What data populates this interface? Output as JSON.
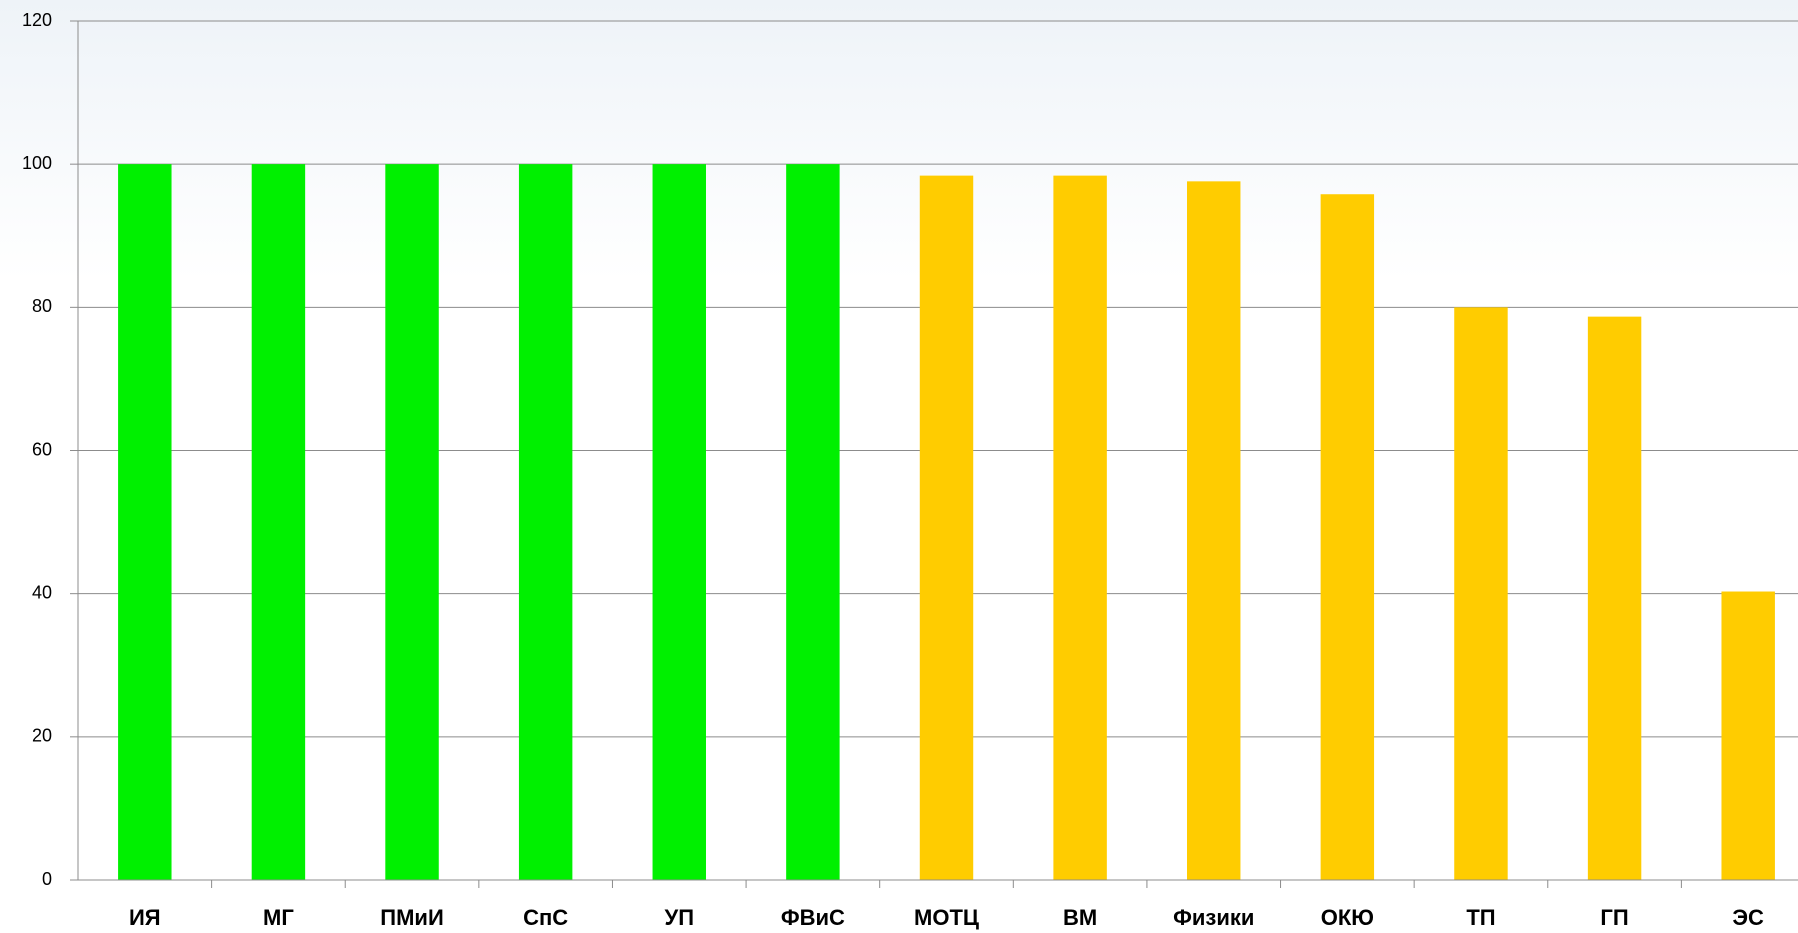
{
  "chart_data": {
    "type": "bar",
    "categories": [
      "ИЯ",
      "МГ",
      "ПМиИ",
      "СпС",
      "УП",
      "ФВиС",
      "МОТЦ",
      "ВМ",
      "Физики",
      "ОКЮ",
      "ТП",
      "ГП",
      "ЭС"
    ],
    "values": [
      100,
      100,
      100,
      100,
      100,
      100,
      98.4,
      98.4,
      97.6,
      95.8,
      80,
      78.7,
      40.3
    ],
    "colors": [
      "#00f000",
      "#00f000",
      "#00f000",
      "#00f000",
      "#00f000",
      "#00f000",
      "#ffcc00",
      "#ffcc00",
      "#ffcc00",
      "#ffcc00",
      "#ffcc00",
      "#ffcc00",
      "#ffcc00"
    ],
    "ylim": [
      0,
      120
    ],
    "yticks": [
      0,
      20,
      40,
      60,
      80,
      100,
      120
    ],
    "grid": true
  }
}
